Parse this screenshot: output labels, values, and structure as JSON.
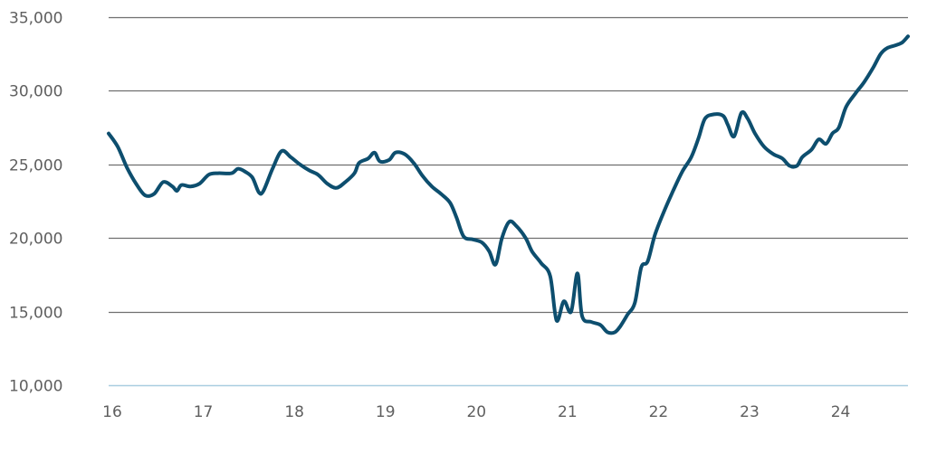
{
  "chart_data": {
    "type": "line",
    "title": "",
    "xlabel": "",
    "ylabel": "",
    "xlim": [
      16,
      24.78
    ],
    "ylim": [
      10000,
      35000
    ],
    "grid": true,
    "legend": "none",
    "colors": {
      "line": "#0d4e6e",
      "grid": "#6f6f6f",
      "baseline": "#a9cde0",
      "tick_text": "#5f5f5f"
    },
    "x_ticks": [
      16,
      17,
      18,
      19,
      20,
      21,
      22,
      23,
      24
    ],
    "x_tick_labels": [
      "16",
      "17",
      "18",
      "19",
      "20",
      "21",
      "22",
      "23",
      "24"
    ],
    "y_ticks": [
      10000,
      15000,
      20000,
      25000,
      30000,
      35000
    ],
    "y_tick_labels": [
      "10,000",
      "15,000",
      "20,000",
      "25,000",
      "30,000",
      "35,000"
    ],
    "series": [
      {
        "points": [
          [
            16.0,
            27100
          ],
          [
            16.1,
            26200
          ],
          [
            16.2,
            24800
          ],
          [
            16.3,
            23700
          ],
          [
            16.4,
            22900
          ],
          [
            16.5,
            23000
          ],
          [
            16.6,
            23800
          ],
          [
            16.7,
            23500
          ],
          [
            16.75,
            23200
          ],
          [
            16.8,
            23600
          ],
          [
            16.9,
            23500
          ],
          [
            17.0,
            23700
          ],
          [
            17.1,
            24300
          ],
          [
            17.2,
            24400
          ],
          [
            17.35,
            24400
          ],
          [
            17.42,
            24700
          ],
          [
            17.5,
            24500
          ],
          [
            17.58,
            24100
          ],
          [
            17.65,
            23100
          ],
          [
            17.7,
            23200
          ],
          [
            17.8,
            24700
          ],
          [
            17.9,
            25900
          ],
          [
            18.0,
            25500
          ],
          [
            18.1,
            25000
          ],
          [
            18.2,
            24600
          ],
          [
            18.3,
            24300
          ],
          [
            18.4,
            23700
          ],
          [
            18.5,
            23400
          ],
          [
            18.6,
            23800
          ],
          [
            18.7,
            24400
          ],
          [
            18.75,
            25100
          ],
          [
            18.85,
            25400
          ],
          [
            18.92,
            25800
          ],
          [
            18.98,
            25200
          ],
          [
            19.08,
            25300
          ],
          [
            19.15,
            25800
          ],
          [
            19.25,
            25700
          ],
          [
            19.35,
            25100
          ],
          [
            19.45,
            24200
          ],
          [
            19.55,
            23500
          ],
          [
            19.65,
            23000
          ],
          [
            19.75,
            22400
          ],
          [
            19.82,
            21400
          ],
          [
            19.9,
            20100
          ],
          [
            20.0,
            19900
          ],
          [
            20.1,
            19700
          ],
          [
            20.18,
            19100
          ],
          [
            20.25,
            18200
          ],
          [
            20.32,
            20000
          ],
          [
            20.4,
            21100
          ],
          [
            20.48,
            20800
          ],
          [
            20.58,
            20000
          ],
          [
            20.65,
            19100
          ],
          [
            20.75,
            18300
          ],
          [
            20.85,
            17400
          ],
          [
            20.92,
            14400
          ],
          [
            21.0,
            15700
          ],
          [
            21.08,
            15000
          ],
          [
            21.15,
            17600
          ],
          [
            21.2,
            14700
          ],
          [
            21.3,
            14300
          ],
          [
            21.4,
            14100
          ],
          [
            21.48,
            13600
          ],
          [
            21.56,
            13600
          ],
          [
            21.62,
            14000
          ],
          [
            21.7,
            14800
          ],
          [
            21.78,
            15600
          ],
          [
            21.85,
            18000
          ],
          [
            21.92,
            18400
          ],
          [
            22.0,
            20200
          ],
          [
            22.1,
            21800
          ],
          [
            22.2,
            23200
          ],
          [
            22.3,
            24500
          ],
          [
            22.4,
            25500
          ],
          [
            22.48,
            26800
          ],
          [
            22.55,
            28100
          ],
          [
            22.65,
            28400
          ],
          [
            22.75,
            28300
          ],
          [
            22.8,
            27700
          ],
          [
            22.87,
            26900
          ],
          [
            22.95,
            28500
          ],
          [
            23.02,
            28100
          ],
          [
            23.1,
            27100
          ],
          [
            23.2,
            26200
          ],
          [
            23.3,
            25700
          ],
          [
            23.4,
            25400
          ],
          [
            23.48,
            24900
          ],
          [
            23.56,
            24900
          ],
          [
            23.62,
            25500
          ],
          [
            23.72,
            26000
          ],
          [
            23.8,
            26700
          ],
          [
            23.88,
            26400
          ],
          [
            23.95,
            27100
          ],
          [
            24.02,
            27500
          ],
          [
            24.1,
            28900
          ],
          [
            24.2,
            29800
          ],
          [
            24.3,
            30600
          ],
          [
            24.4,
            31600
          ],
          [
            24.48,
            32500
          ],
          [
            24.55,
            32900
          ],
          [
            24.65,
            33100
          ],
          [
            24.72,
            33300
          ],
          [
            24.78,
            33700
          ]
        ]
      }
    ]
  }
}
